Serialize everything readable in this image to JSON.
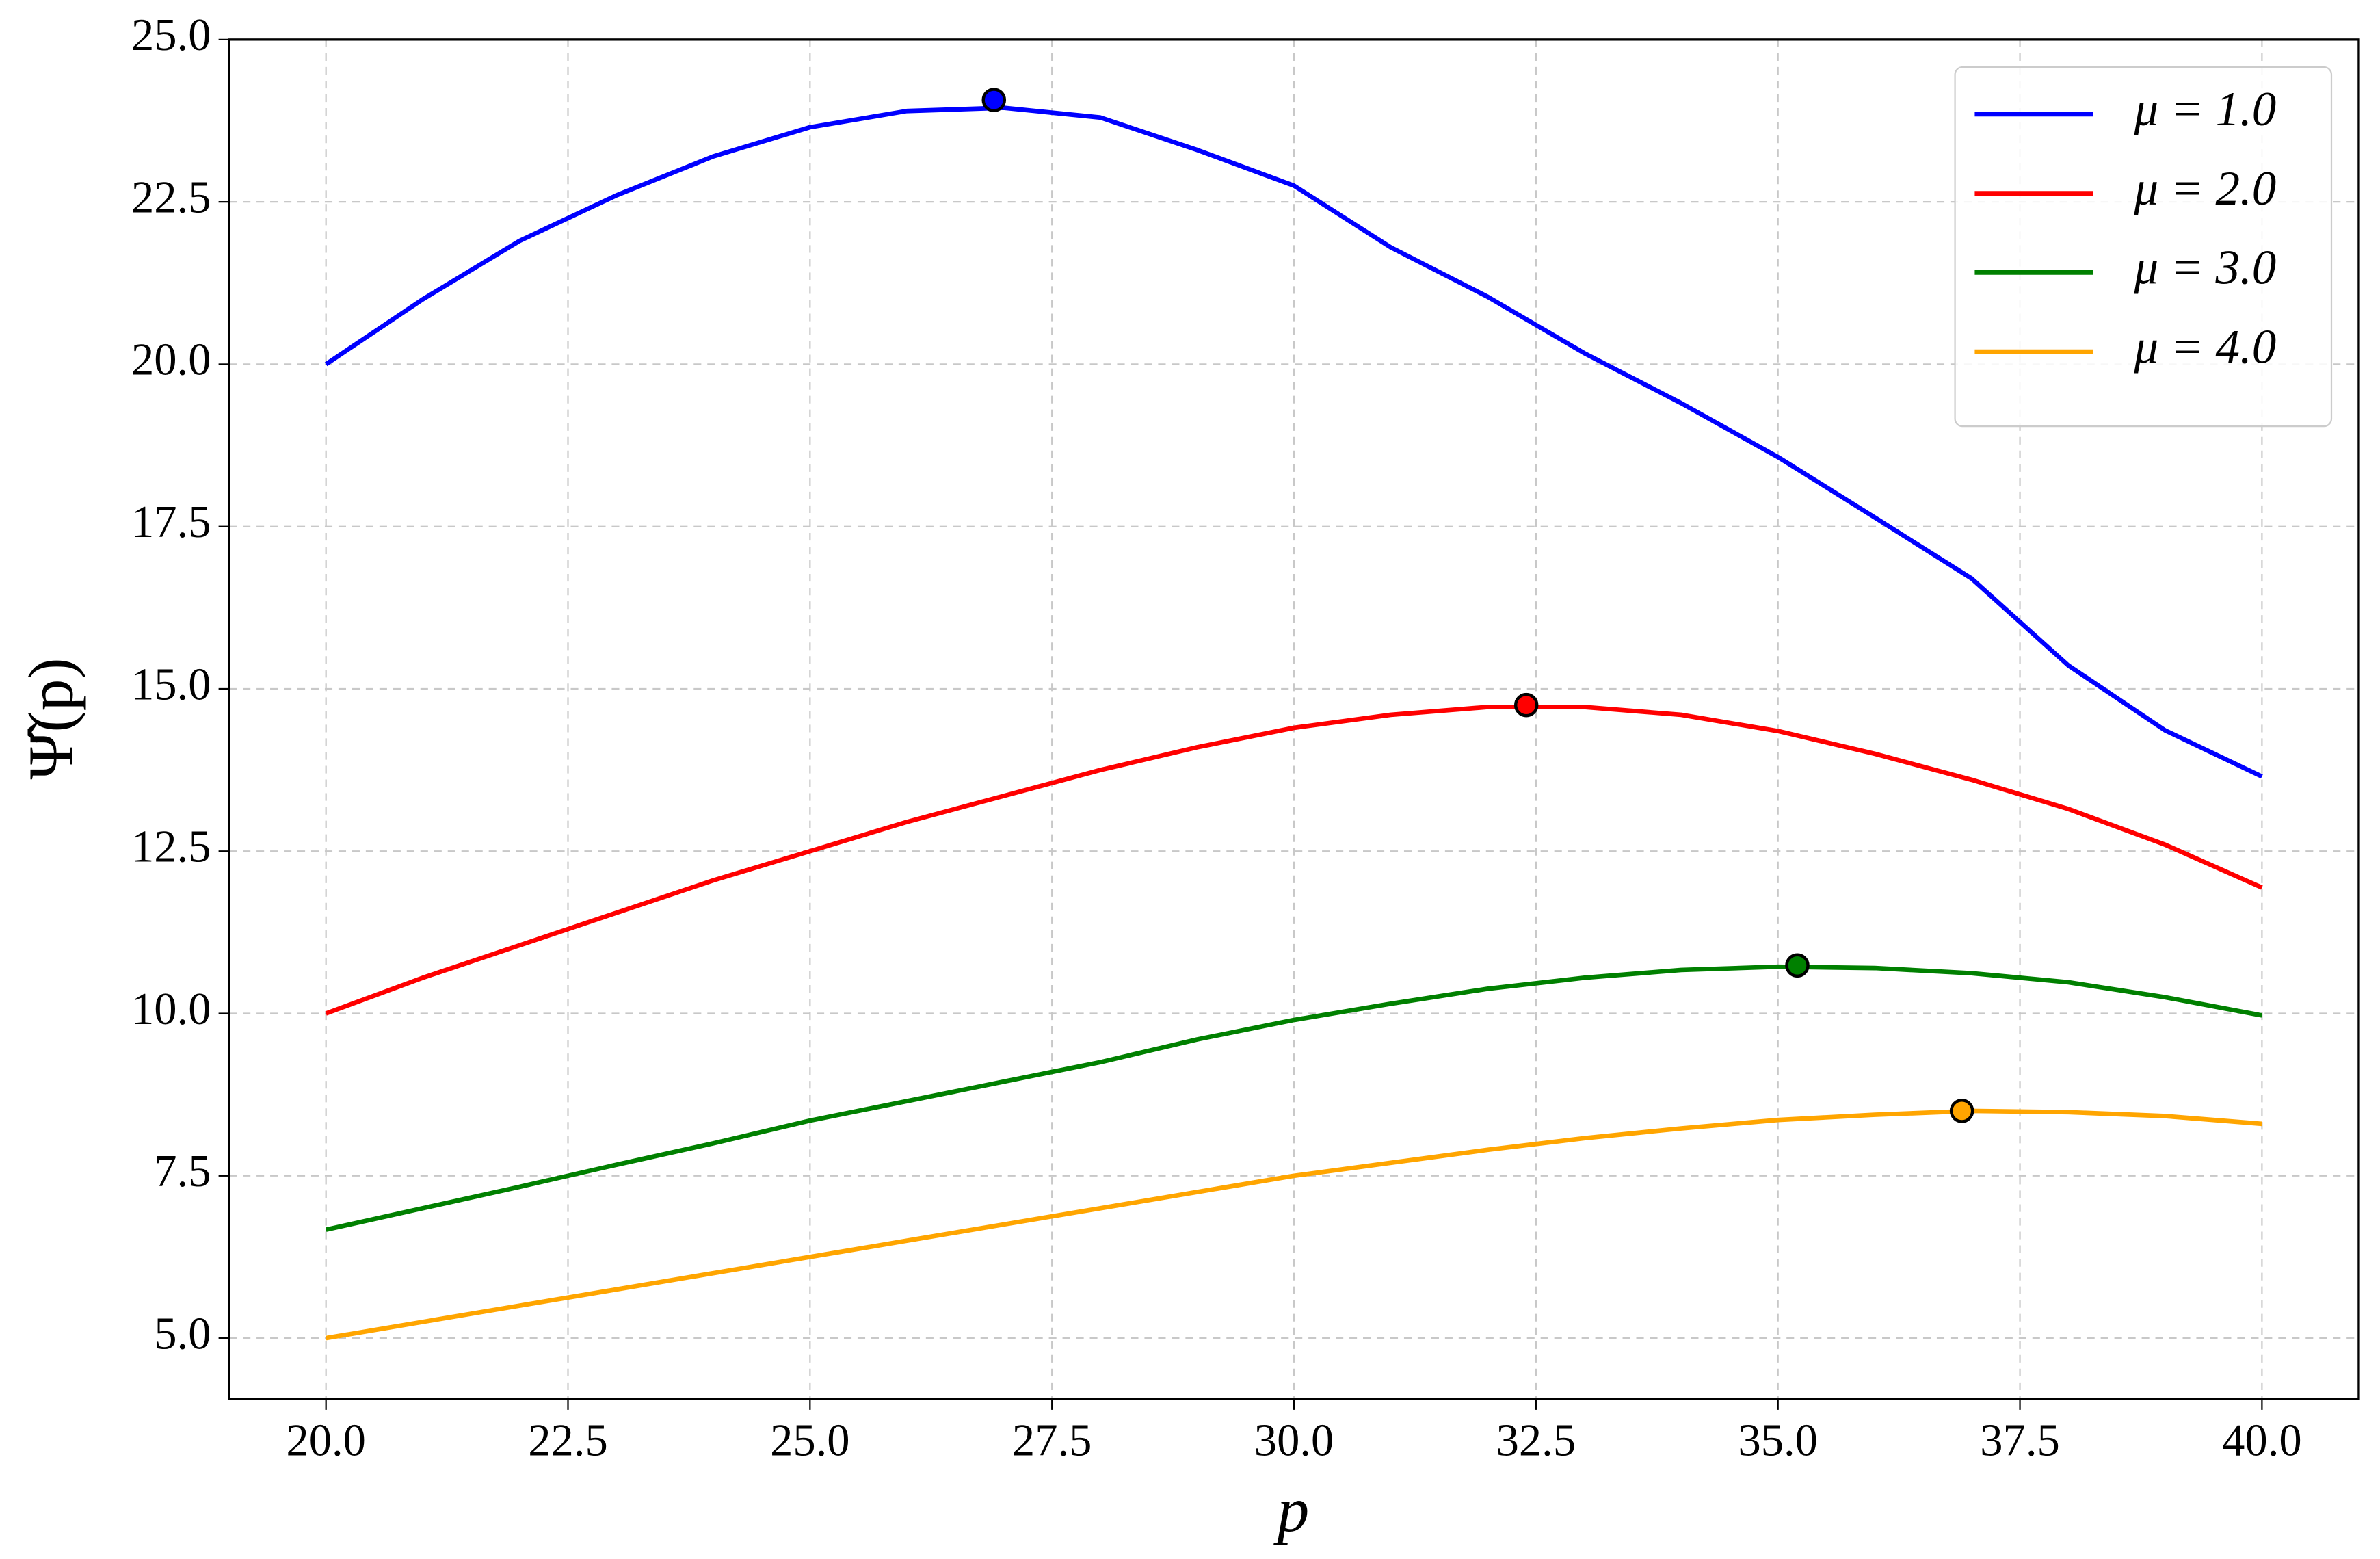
{
  "chart_data": {
    "type": "line",
    "xlabel": "p",
    "ylabel": "Ψ̂(p)",
    "x": [
      20,
      21,
      22,
      23,
      24,
      25,
      26,
      27,
      28,
      29,
      30,
      31,
      32,
      33,
      34,
      35,
      36,
      37,
      38,
      39,
      40
    ],
    "series": [
      {
        "name": "μ = 1.0",
        "color": "#0000ff",
        "values": [
          20.0,
          21.0,
          21.9,
          22.6,
          23.2,
          23.65,
          23.9,
          23.95,
          23.8,
          23.3,
          22.75,
          21.8,
          21.04,
          20.17,
          19.4,
          18.57,
          17.64,
          16.7,
          15.36,
          14.36,
          13.65
        ],
        "peak": {
          "x": 26.9,
          "y": 24.07
        }
      },
      {
        "name": "μ = 2.0",
        "color": "#ff0000",
        "values": [
          10.0,
          10.55,
          11.05,
          11.55,
          12.05,
          12.5,
          12.95,
          13.35,
          13.75,
          14.1,
          14.4,
          14.6,
          14.72,
          14.72,
          14.6,
          14.35,
          14.0,
          13.6,
          13.15,
          12.6,
          11.94
        ],
        "peak": {
          "x": 32.4,
          "y": 14.75
        }
      },
      {
        "name": "μ = 3.0",
        "color": "#008000",
        "values": [
          6.67,
          7.0,
          7.33,
          7.67,
          8.0,
          8.35,
          8.65,
          8.95,
          9.25,
          9.6,
          9.9,
          10.15,
          10.38,
          10.55,
          10.67,
          10.72,
          10.7,
          10.62,
          10.48,
          10.25,
          9.97
        ],
        "peak": {
          "x": 35.2,
          "y": 10.74
        }
      },
      {
        "name": "μ = 4.0",
        "color": "#ffa500",
        "values": [
          5.0,
          5.25,
          5.5,
          5.75,
          6.0,
          6.25,
          6.5,
          6.75,
          7.0,
          7.25,
          7.5,
          7.7,
          7.9,
          8.08,
          8.23,
          8.36,
          8.44,
          8.5,
          8.48,
          8.42,
          8.3
        ],
        "peak": {
          "x": 36.9,
          "y": 8.5
        }
      }
    ],
    "xlim": [
      19.0,
      41.0
    ],
    "ylim": [
      4.06,
      25.0
    ],
    "xticks": [
      {
        "value": 20,
        "label": "20.0"
      },
      22.5,
      {
        "value": 25,
        "label": "25.0"
      },
      27.5,
      {
        "value": 30,
        "label": "30.0"
      },
      32.5,
      {
        "value": 35,
        "label": "35.0"
      },
      37.5,
      {
        "value": 40,
        "label": "40.0"
      }
    ],
    "yticks": [
      {
        "value": 5,
        "label": "5.0"
      },
      7.5,
      {
        "value": 10,
        "label": "10.0"
      },
      12.5,
      {
        "value": 15,
        "label": "15.0"
      },
      17.5,
      {
        "value": 20,
        "label": "20.0"
      },
      22.5,
      {
        "value": 25,
        "label": "25.0"
      }
    ],
    "grid": true,
    "legend": "upper right"
  }
}
